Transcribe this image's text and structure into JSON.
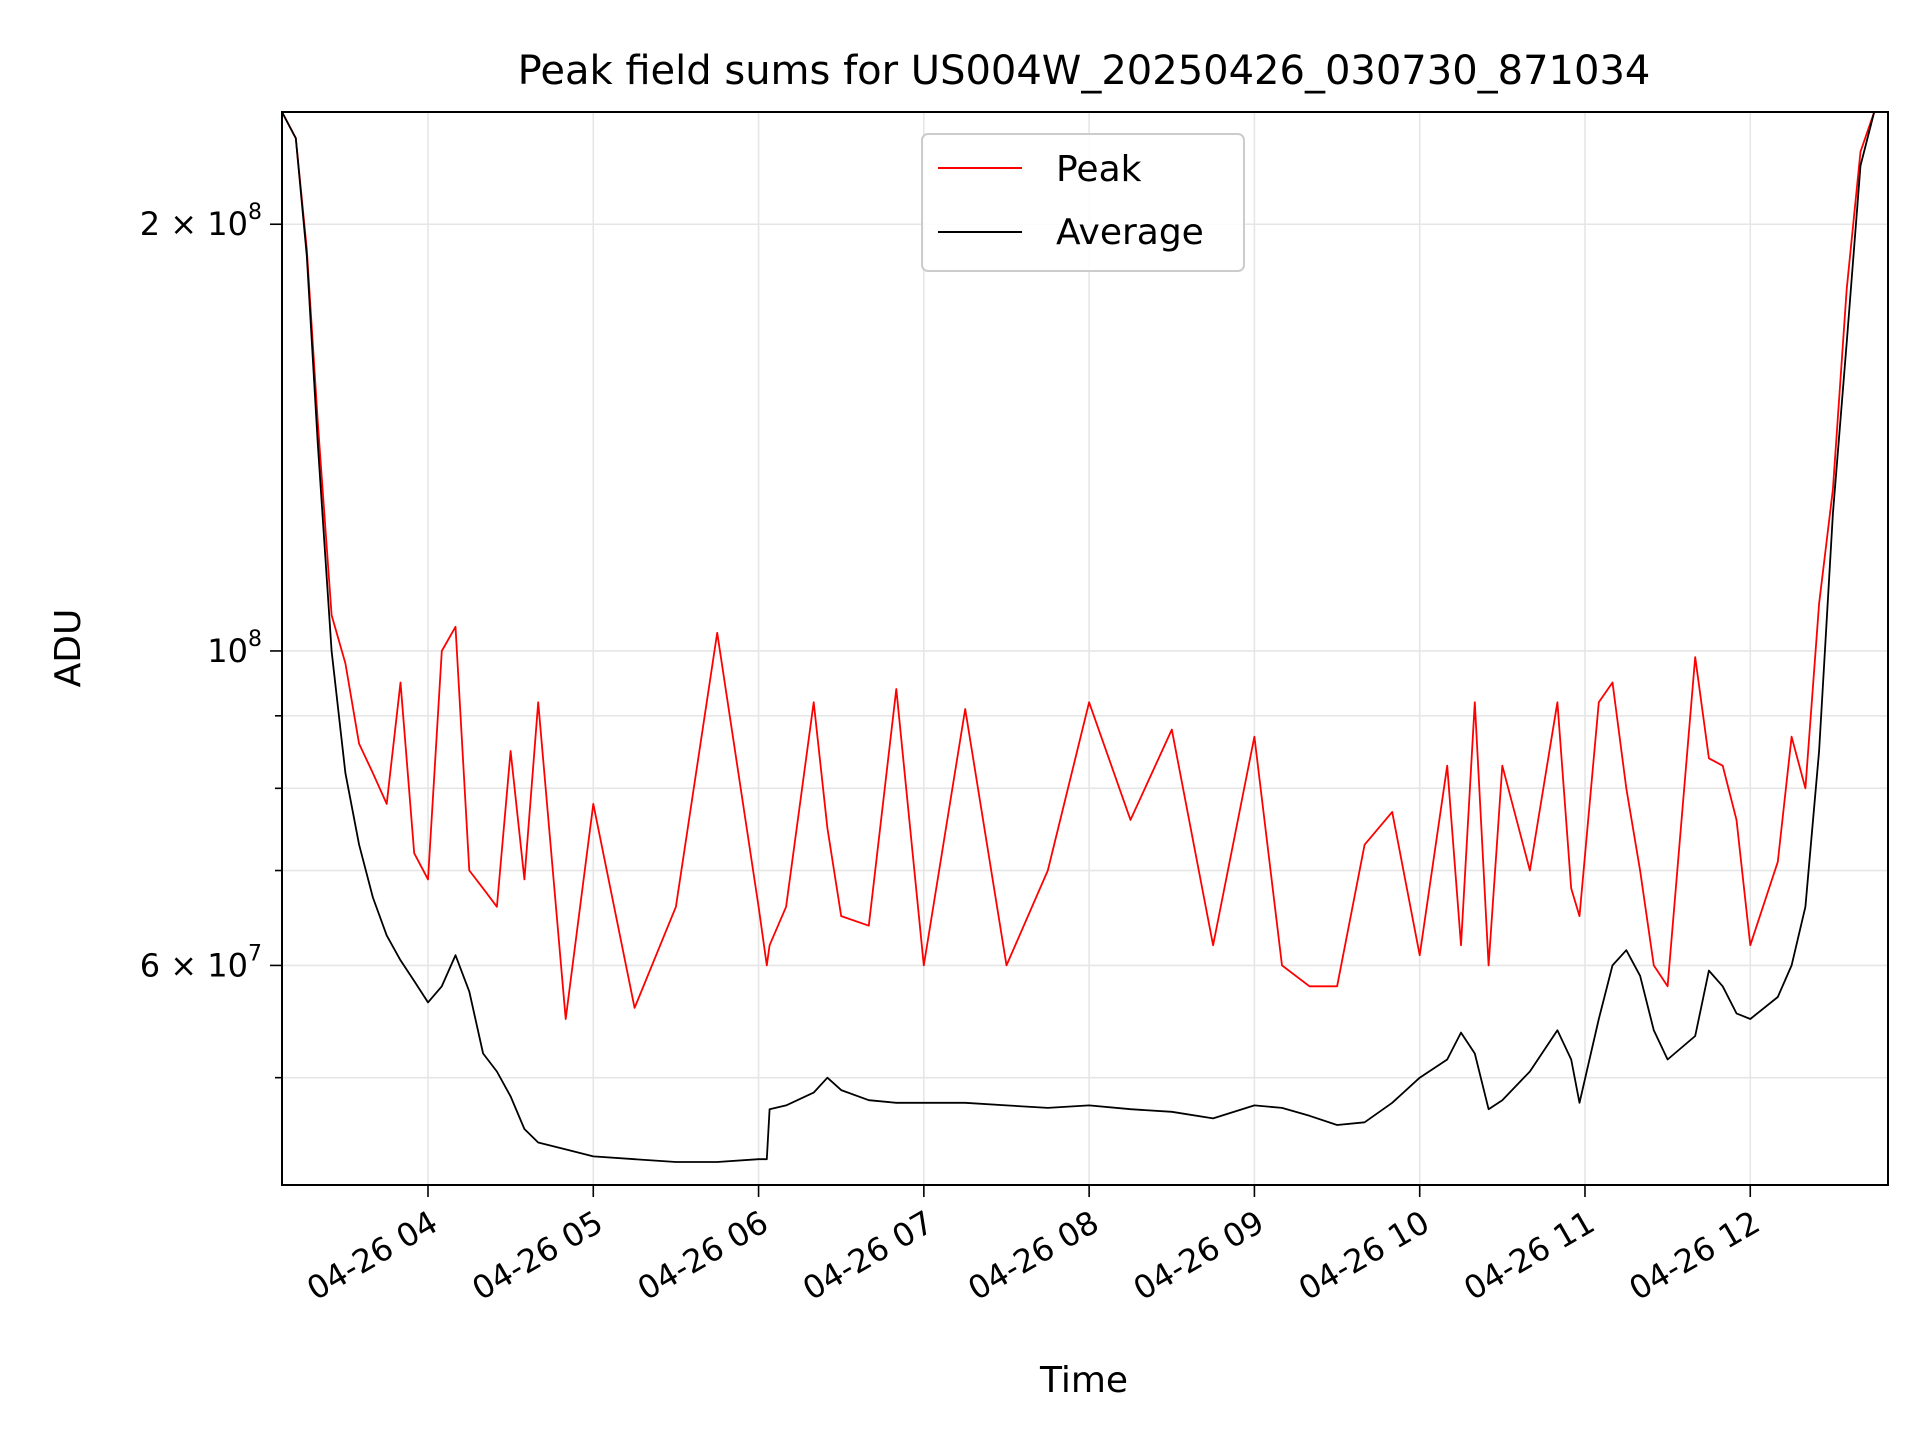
{
  "chart_data": {
    "type": "line",
    "title": "Peak field sums for US004W_20250426_030730_871034",
    "xlabel": "Time",
    "ylabel": "ADU",
    "yscale": "log",
    "xlim": [
      "2025-04-26 03:07",
      "2025-04-26 12:50"
    ],
    "ylim": [
      42000000,
      240000000
    ],
    "grid": true,
    "legend_position": "upper center",
    "x_ticks": [
      {
        "value": "2025-04-26 04:00",
        "label": "04-26 04"
      },
      {
        "value": "2025-04-26 05:00",
        "label": "04-26 05"
      },
      {
        "value": "2025-04-26 06:00",
        "label": "04-26 06"
      },
      {
        "value": "2025-04-26 07:00",
        "label": "04-26 07"
      },
      {
        "value": "2025-04-26 08:00",
        "label": "04-26 08"
      },
      {
        "value": "2025-04-26 09:00",
        "label": "04-26 09"
      },
      {
        "value": "2025-04-26 10:00",
        "label": "04-26 10"
      },
      {
        "value": "2025-04-26 11:00",
        "label": "04-26 11"
      },
      {
        "value": "2025-04-26 12:00",
        "label": "04-26 12"
      }
    ],
    "y_major_ticks": [
      {
        "value": 200000000,
        "base": "2 × 10",
        "exp": "8"
      },
      {
        "value": 100000000,
        "base": "10",
        "exp": "8"
      },
      {
        "value": 60000000,
        "base": "6 × 10",
        "exp": "7"
      }
    ],
    "y_minor_ticks": [
      50000000,
      70000000,
      80000000,
      90000000
    ],
    "series": [
      {
        "name": "Average",
        "color": "#000000",
        "points": [
          [
            "2025-04-26 03:07",
            240000000
          ],
          [
            "2025-04-26 03:12",
            230000000
          ],
          [
            "2025-04-26 03:16",
            190000000
          ],
          [
            "2025-04-26 03:20",
            140000000
          ],
          [
            "2025-04-26 03:25",
            100000000
          ],
          [
            "2025-04-26 03:30",
            82000000
          ],
          [
            "2025-04-26 03:35",
            73000000
          ],
          [
            "2025-04-26 03:40",
            67000000
          ],
          [
            "2025-04-26 03:45",
            63000000
          ],
          [
            "2025-04-26 03:50",
            60500000
          ],
          [
            "2025-04-26 03:55",
            58500000
          ],
          [
            "2025-04-26 04:00",
            56500000
          ],
          [
            "2025-04-26 04:05",
            58000000
          ],
          [
            "2025-04-26 04:10",
            61000000
          ],
          [
            "2025-04-26 04:15",
            57500000
          ],
          [
            "2025-04-26 04:20",
            52000000
          ],
          [
            "2025-04-26 04:25",
            50500000
          ],
          [
            "2025-04-26 04:30",
            48500000
          ],
          [
            "2025-04-26 04:35",
            46000000
          ],
          [
            "2025-04-26 04:40",
            45000000
          ],
          [
            "2025-04-26 04:50",
            44500000
          ],
          [
            "2025-04-26 05:00",
            44000000
          ],
          [
            "2025-04-26 05:15",
            43800000
          ],
          [
            "2025-04-26 05:30",
            43600000
          ],
          [
            "2025-04-26 05:45",
            43600000
          ],
          [
            "2025-04-26 06:00",
            43800000
          ],
          [
            "2025-04-26 06:03",
            43800000
          ],
          [
            "2025-04-26 06:04",
            47500000
          ],
          [
            "2025-04-26 06:10",
            47800000
          ],
          [
            "2025-04-26 06:20",
            48800000
          ],
          [
            "2025-04-26 06:25",
            50000000
          ],
          [
            "2025-04-26 06:30",
            49000000
          ],
          [
            "2025-04-26 06:40",
            48200000
          ],
          [
            "2025-04-26 06:50",
            48000000
          ],
          [
            "2025-04-26 07:00",
            48000000
          ],
          [
            "2025-04-26 07:15",
            48000000
          ],
          [
            "2025-04-26 07:30",
            47800000
          ],
          [
            "2025-04-26 07:45",
            47600000
          ],
          [
            "2025-04-26 08:00",
            47800000
          ],
          [
            "2025-04-26 08:15",
            47500000
          ],
          [
            "2025-04-26 08:30",
            47300000
          ],
          [
            "2025-04-26 08:45",
            46800000
          ],
          [
            "2025-04-26 09:00",
            47800000
          ],
          [
            "2025-04-26 09:10",
            47600000
          ],
          [
            "2025-04-26 09:20",
            47000000
          ],
          [
            "2025-04-26 09:30",
            46300000
          ],
          [
            "2025-04-26 09:40",
            46500000
          ],
          [
            "2025-04-26 09:50",
            48000000
          ],
          [
            "2025-04-26 10:00",
            50000000
          ],
          [
            "2025-04-26 10:10",
            51500000
          ],
          [
            "2025-04-26 10:15",
            53800000
          ],
          [
            "2025-04-26 10:20",
            52000000
          ],
          [
            "2025-04-26 10:25",
            47500000
          ],
          [
            "2025-04-26 10:30",
            48200000
          ],
          [
            "2025-04-26 10:40",
            50500000
          ],
          [
            "2025-04-26 10:50",
            54000000
          ],
          [
            "2025-04-26 10:55",
            51500000
          ],
          [
            "2025-04-26 10:58",
            48000000
          ],
          [
            "2025-04-26 11:05",
            55000000
          ],
          [
            "2025-04-26 11:10",
            60000000
          ],
          [
            "2025-04-26 11:15",
            61500000
          ],
          [
            "2025-04-26 11:20",
            59000000
          ],
          [
            "2025-04-26 11:25",
            54000000
          ],
          [
            "2025-04-26 11:30",
            51500000
          ],
          [
            "2025-04-26 11:40",
            53500000
          ],
          [
            "2025-04-26 11:45",
            59500000
          ],
          [
            "2025-04-26 11:50",
            58000000
          ],
          [
            "2025-04-26 11:55",
            55500000
          ],
          [
            "2025-04-26 12:00",
            55000000
          ],
          [
            "2025-04-26 12:10",
            57000000
          ],
          [
            "2025-04-26 12:15",
            60000000
          ],
          [
            "2025-04-26 12:20",
            66000000
          ],
          [
            "2025-04-26 12:25",
            85000000
          ],
          [
            "2025-04-26 12:30",
            125000000
          ],
          [
            "2025-04-26 12:35",
            165000000
          ],
          [
            "2025-04-26 12:40",
            220000000
          ],
          [
            "2025-04-26 12:45",
            240000000
          ],
          [
            "2025-04-26 12:50",
            240000000
          ]
        ]
      },
      {
        "name": "Peak",
        "color": "#ff0000",
        "points": [
          [
            "2025-04-26 03:07",
            240000000
          ],
          [
            "2025-04-26 03:12",
            230000000
          ],
          [
            "2025-04-26 03:16",
            192000000
          ],
          [
            "2025-04-26 03:20",
            145000000
          ],
          [
            "2025-04-26 03:25",
            106000000
          ],
          [
            "2025-04-26 03:30",
            98000000
          ],
          [
            "2025-04-26 03:35",
            86000000
          ],
          [
            "2025-04-26 03:40",
            82000000
          ],
          [
            "2025-04-26 03:45",
            78000000
          ],
          [
            "2025-04-26 03:50",
            95000000
          ],
          [
            "2025-04-26 03:55",
            72000000
          ],
          [
            "2025-04-26 04:00",
            69000000
          ],
          [
            "2025-04-26 04:05",
            100000000
          ],
          [
            "2025-04-26 04:10",
            104000000
          ],
          [
            "2025-04-26 04:15",
            70000000
          ],
          [
            "2025-04-26 04:20",
            68000000
          ],
          [
            "2025-04-26 04:25",
            66000000
          ],
          [
            "2025-04-26 04:30",
            85000000
          ],
          [
            "2025-04-26 04:35",
            69000000
          ],
          [
            "2025-04-26 04:40",
            92000000
          ],
          [
            "2025-04-26 04:50",
            55000000
          ],
          [
            "2025-04-26 05:00",
            78000000
          ],
          [
            "2025-04-26 05:15",
            56000000
          ],
          [
            "2025-04-26 05:30",
            66000000
          ],
          [
            "2025-04-26 05:45",
            103000000
          ],
          [
            "2025-04-26 06:00",
            66000000
          ],
          [
            "2025-04-26 06:03",
            60000000
          ],
          [
            "2025-04-26 06:04",
            62000000
          ],
          [
            "2025-04-26 06:10",
            66000000
          ],
          [
            "2025-04-26 06:20",
            92000000
          ],
          [
            "2025-04-26 06:25",
            75000000
          ],
          [
            "2025-04-26 06:30",
            65000000
          ],
          [
            "2025-04-26 06:40",
            64000000
          ],
          [
            "2025-04-26 06:50",
            94000000
          ],
          [
            "2025-04-26 07:00",
            60000000
          ],
          [
            "2025-04-26 07:15",
            91000000
          ],
          [
            "2025-04-26 07:30",
            60000000
          ],
          [
            "2025-04-26 07:45",
            70000000
          ],
          [
            "2025-04-26 08:00",
            92000000
          ],
          [
            "2025-04-26 08:15",
            76000000
          ],
          [
            "2025-04-26 08:30",
            88000000
          ],
          [
            "2025-04-26 08:45",
            62000000
          ],
          [
            "2025-04-26 09:00",
            87000000
          ],
          [
            "2025-04-26 09:10",
            60000000
          ],
          [
            "2025-04-26 09:20",
            58000000
          ],
          [
            "2025-04-26 09:30",
            58000000
          ],
          [
            "2025-04-26 09:40",
            73000000
          ],
          [
            "2025-04-26 09:50",
            77000000
          ],
          [
            "2025-04-26 10:00",
            61000000
          ],
          [
            "2025-04-26 10:10",
            83000000
          ],
          [
            "2025-04-26 10:15",
            62000000
          ],
          [
            "2025-04-26 10:20",
            92000000
          ],
          [
            "2025-04-26 10:25",
            60000000
          ],
          [
            "2025-04-26 10:30",
            83000000
          ],
          [
            "2025-04-26 10:40",
            70000000
          ],
          [
            "2025-04-26 10:50",
            92000000
          ],
          [
            "2025-04-26 10:55",
            68000000
          ],
          [
            "2025-04-26 10:58",
            65000000
          ],
          [
            "2025-04-26 11:05",
            92000000
          ],
          [
            "2025-04-26 11:10",
            95000000
          ],
          [
            "2025-04-26 11:15",
            80000000
          ],
          [
            "2025-04-26 11:20",
            70000000
          ],
          [
            "2025-04-26 11:25",
            60000000
          ],
          [
            "2025-04-26 11:30",
            58000000
          ],
          [
            "2025-04-26 11:40",
            99000000
          ],
          [
            "2025-04-26 11:45",
            84000000
          ],
          [
            "2025-04-26 11:50",
            83000000
          ],
          [
            "2025-04-26 11:55",
            76000000
          ],
          [
            "2025-04-26 12:00",
            62000000
          ],
          [
            "2025-04-26 12:10",
            71000000
          ],
          [
            "2025-04-26 12:15",
            87000000
          ],
          [
            "2025-04-26 12:20",
            80000000
          ],
          [
            "2025-04-26 12:25",
            108000000
          ],
          [
            "2025-04-26 12:30",
            130000000
          ],
          [
            "2025-04-26 12:35",
            180000000
          ],
          [
            "2025-04-26 12:40",
            225000000
          ],
          [
            "2025-04-26 12:45",
            240000000
          ],
          [
            "2025-04-26 12:50",
            240000000
          ]
        ]
      }
    ]
  }
}
